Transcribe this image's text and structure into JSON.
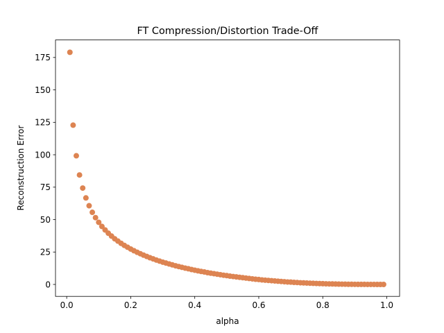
{
  "chart_data": {
    "type": "scatter",
    "title": "FT Compression/Distortion Trade-Off",
    "xlabel": "alpha",
    "ylabel": "Reconstruction Error",
    "xlim": [
      -0.035,
      1.04
    ],
    "ylim": [
      -9.2,
      188.5
    ],
    "x_ticks": [
      0.0,
      0.2,
      0.4,
      0.6,
      0.8,
      1.0
    ],
    "x_tick_labels": [
      "0.0",
      "0.2",
      "0.4",
      "0.6",
      "0.8",
      "1.0"
    ],
    "y_ticks": [
      0,
      25,
      50,
      75,
      100,
      125,
      150,
      175
    ],
    "y_tick_labels": [
      "0",
      "25",
      "50",
      "75",
      "100",
      "125",
      "150",
      "175"
    ],
    "grid": false,
    "marker_color": "#dd8452",
    "x": [
      0.01,
      0.02,
      0.03,
      0.04,
      0.05,
      0.06,
      0.07,
      0.08,
      0.09,
      0.1,
      0.11,
      0.12,
      0.13,
      0.14,
      0.15,
      0.16,
      0.17,
      0.18,
      0.19,
      0.2,
      0.21,
      0.22,
      0.23,
      0.24,
      0.25,
      0.26,
      0.27,
      0.28,
      0.29,
      0.3,
      0.31,
      0.32,
      0.33,
      0.34,
      0.35,
      0.36,
      0.37,
      0.38,
      0.39,
      0.4,
      0.41,
      0.42,
      0.43,
      0.44,
      0.45,
      0.46,
      0.47,
      0.48,
      0.49,
      0.5,
      0.51,
      0.52,
      0.53,
      0.54,
      0.55,
      0.56,
      0.57,
      0.58,
      0.59,
      0.6,
      0.61,
      0.62,
      0.63,
      0.64,
      0.65,
      0.66,
      0.67,
      0.68,
      0.69,
      0.7,
      0.71,
      0.72,
      0.73,
      0.74,
      0.75,
      0.76,
      0.77,
      0.78,
      0.79,
      0.8,
      0.81,
      0.82,
      0.83,
      0.84,
      0.85,
      0.86,
      0.87,
      0.88,
      0.89,
      0.9,
      0.91,
      0.92,
      0.93,
      0.94,
      0.95,
      0.96,
      0.97,
      0.98,
      0.99
    ],
    "y": [
      179.0,
      122.8,
      99.2,
      84.4,
      74.3,
      66.7,
      60.7,
      55.6,
      51.5,
      47.9,
      44.7,
      42.0,
      39.5,
      37.3,
      35.2,
      33.4,
      31.7,
      30.1,
      28.7,
      27.3,
      26.0,
      24.8,
      23.7,
      22.6,
      21.6,
      20.6,
      19.7,
      18.8,
      18.0,
      17.2,
      16.5,
      15.8,
      15.1,
      14.4,
      13.8,
      13.2,
      12.6,
      12.1,
      11.5,
      11.0,
      10.5,
      10.0,
      9.6,
      9.1,
      8.7,
      8.3,
      7.9,
      7.5,
      7.1,
      6.8,
      6.4,
      6.1,
      5.8,
      5.5,
      5.2,
      4.9,
      4.6,
      4.3,
      4.0,
      3.8,
      3.5,
      3.3,
      3.1,
      2.9,
      2.7,
      2.5,
      2.3,
      2.1,
      1.9,
      1.8,
      1.6,
      1.5,
      1.3,
      1.2,
      1.1,
      0.95,
      0.85,
      0.75,
      0.66,
      0.58,
      0.5,
      0.43,
      0.37,
      0.31,
      0.26,
      0.22,
      0.18,
      0.14,
      0.11,
      0.09,
      0.07,
      0.05,
      0.04,
      0.03,
      0.02,
      0.01,
      0.005,
      0.002,
      0.0
    ]
  }
}
